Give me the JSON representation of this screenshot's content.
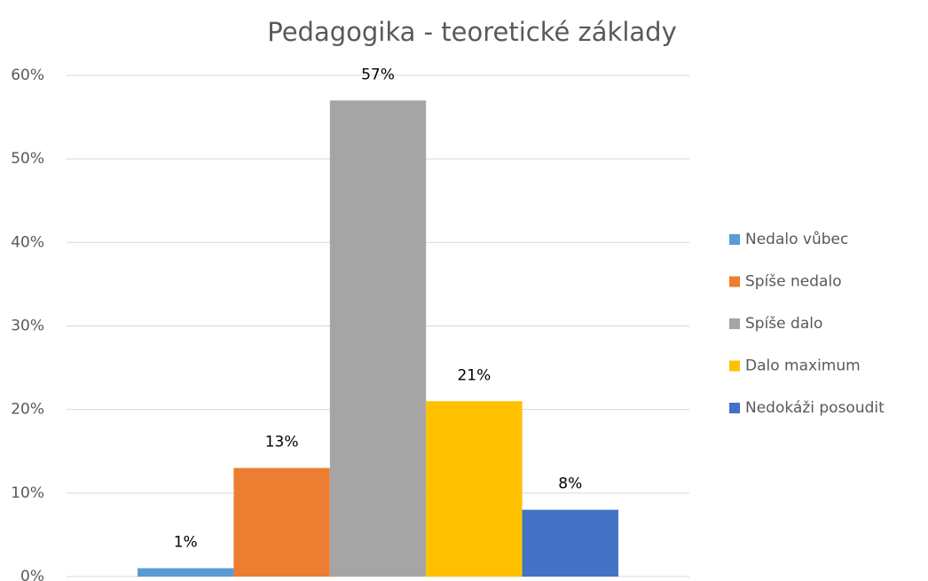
{
  "chart_data": {
    "type": "bar",
    "title": "Pedagogika - teoretické základy",
    "categories": [
      null
    ],
    "series": [
      {
        "name": "Nedalo vůbec",
        "color": "#5b9bd5",
        "values": [
          1
        ],
        "value_labels": [
          "1%"
        ]
      },
      {
        "name": "Spíše nedalo",
        "color": "#ed7d31",
        "values": [
          13
        ],
        "value_labels": [
          "13%"
        ]
      },
      {
        "name": "Spíše dalo",
        "color": "#a5a5a5",
        "values": [
          57
        ],
        "value_labels": [
          "57%"
        ]
      },
      {
        "name": "Dalo maximum",
        "color": "#ffc000",
        "values": [
          21
        ],
        "value_labels": [
          "21%"
        ]
      },
      {
        "name": "Nedokáži posoudit",
        "color": "#4472c4",
        "values": [
          8
        ],
        "value_labels": [
          "8%"
        ]
      }
    ],
    "ylim": [
      0,
      60
    ],
    "yticks": [
      {
        "value": 0,
        "label": "0%"
      },
      {
        "value": 10,
        "label": "10%"
      },
      {
        "value": 20,
        "label": "20%"
      },
      {
        "value": 30,
        "label": "30%"
      },
      {
        "value": 40,
        "label": "40%"
      },
      {
        "value": 50,
        "label": "50%"
      },
      {
        "value": 60,
        "label": "60%"
      }
    ],
    "grid": true,
    "legend": "right"
  }
}
